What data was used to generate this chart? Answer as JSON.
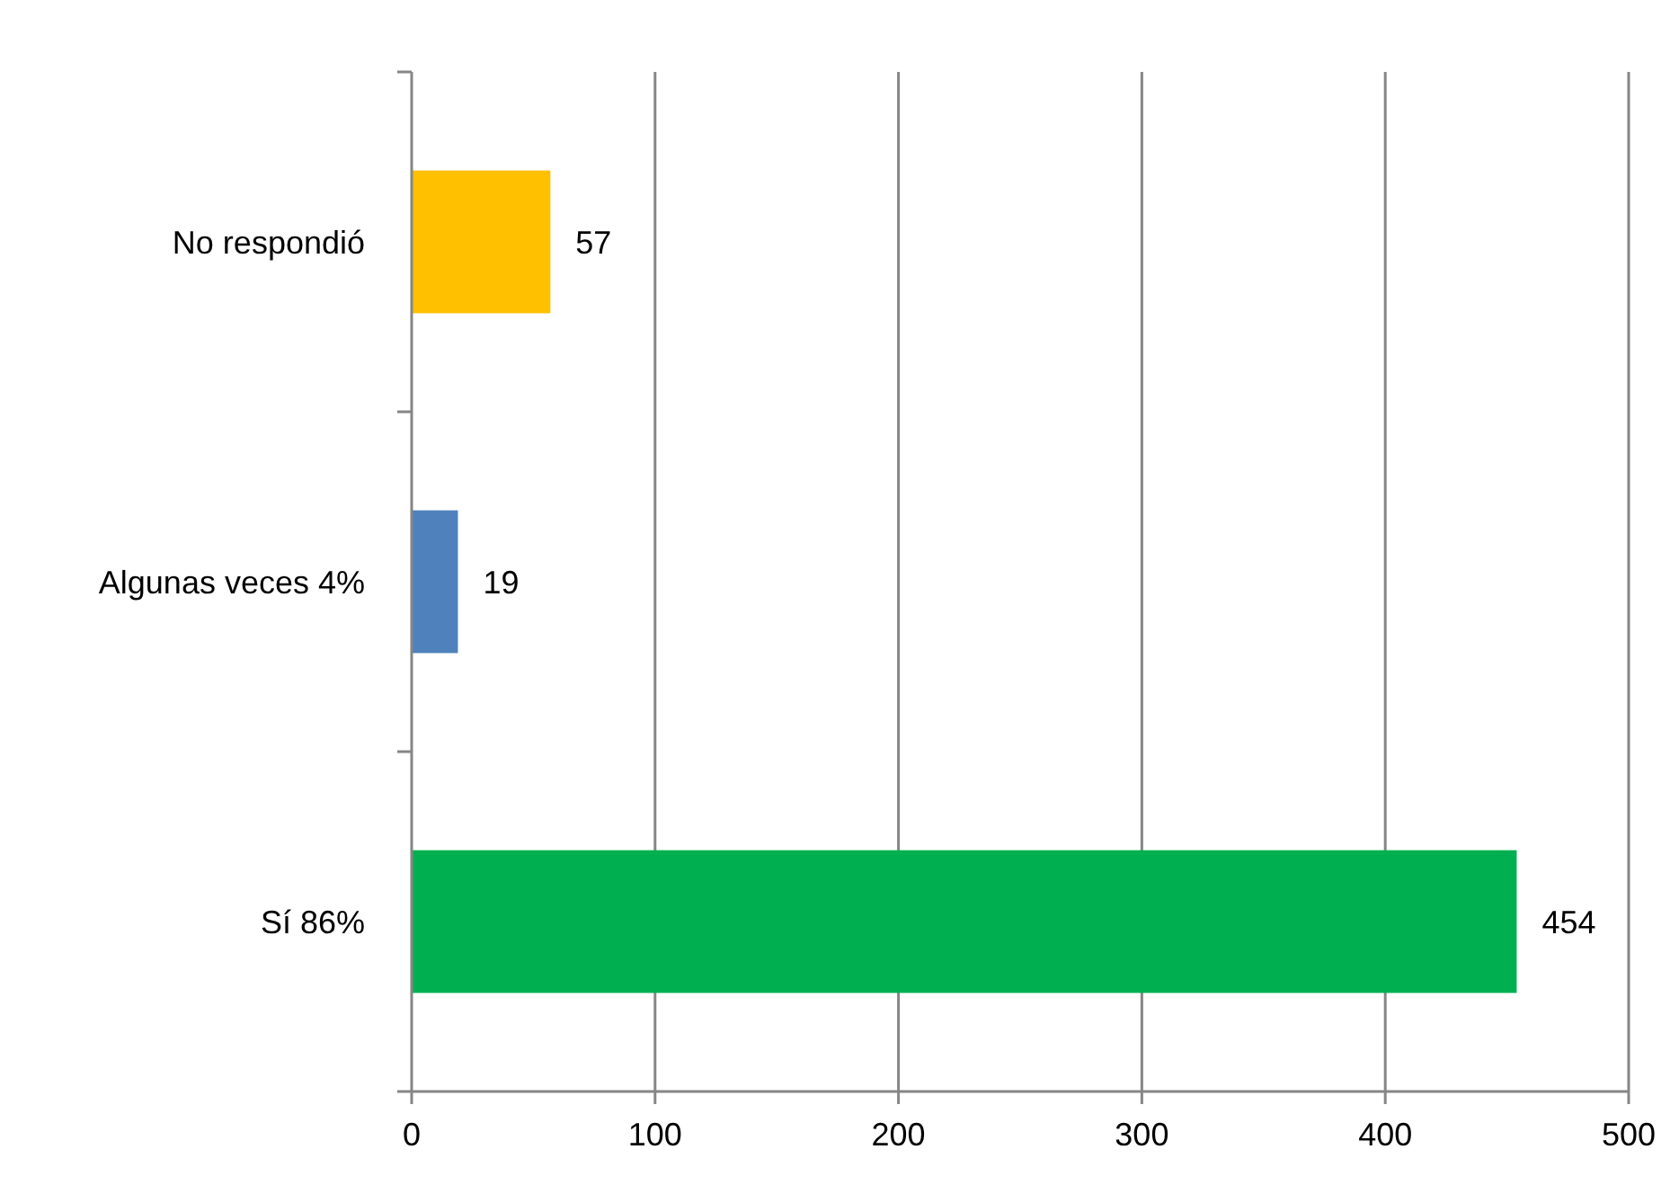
{
  "chart_data": {
    "type": "bar",
    "orientation": "horizontal",
    "categories": [
      "No respondió",
      "Algunas veces 4%",
      "Sí 86%"
    ],
    "values": [
      57,
      19,
      454
    ],
    "colors": [
      "#ffc000",
      "#4f81bd",
      "#00b050"
    ],
    "xlim": [
      0,
      500
    ],
    "xticks": [
      0,
      100,
      200,
      300,
      400,
      500
    ],
    "grid": "x",
    "data_labels": true
  }
}
